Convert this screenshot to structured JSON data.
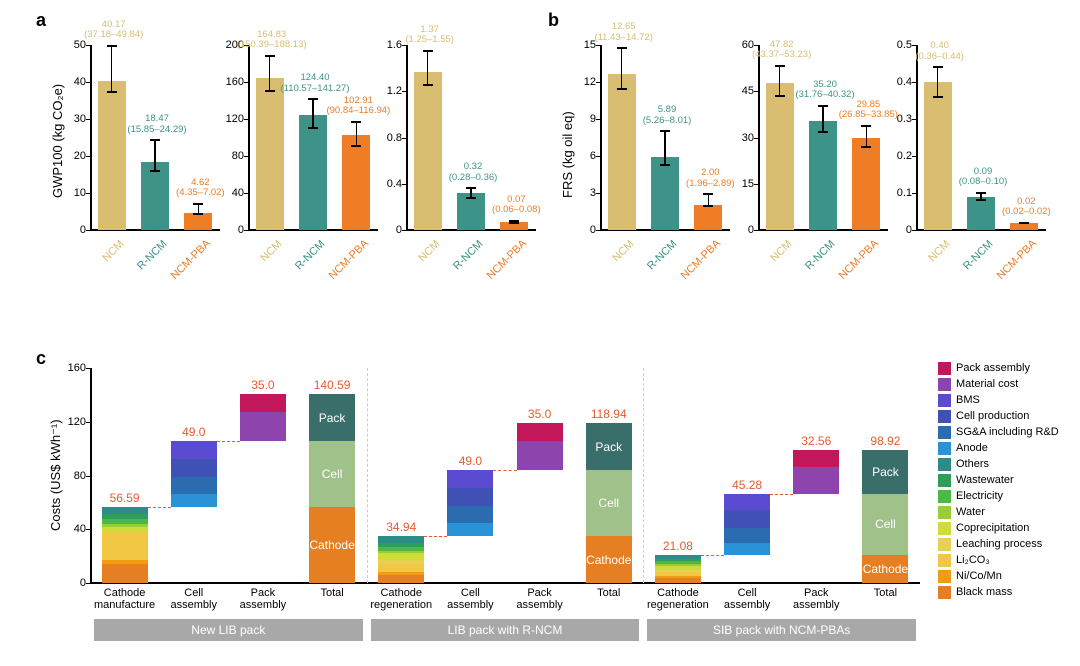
{
  "colors": {
    "ncm": "#d9bd70",
    "rncm": "#3e9388",
    "pba": "#ee7d26",
    "axis": "#000000",
    "bg": "#ffffff"
  },
  "panelA": {
    "label": "a",
    "ylabel": "GWP100 (kg CO₂e)",
    "charts": [
      {
        "ylim": [
          0,
          50
        ],
        "ytick": 10,
        "bars": [
          {
            "cat": "NCM",
            "v": 40.17,
            "lo": 37.18,
            "hi": 49.84,
            "color": "#d9bd70"
          },
          {
            "cat": "R-NCM",
            "v": 18.47,
            "lo": 15.85,
            "hi": 24.29,
            "color": "#3e9388"
          },
          {
            "cat": "NCM-PBA",
            "v": 4.62,
            "lo": 4.35,
            "hi": 7.02,
            "color": "#ee7d26"
          }
        ]
      },
      {
        "ylim": [
          0,
          200
        ],
        "ytick": 40,
        "bars": [
          {
            "cat": "NCM",
            "v": 164.83,
            "lo": 150.39,
            "hi": 188.13,
            "color": "#d9bd70"
          },
          {
            "cat": "R-NCM",
            "v": 124.4,
            "lo": 110.57,
            "hi": 141.27,
            "color": "#3e9388"
          },
          {
            "cat": "NCM-PBA",
            "v": 102.91,
            "lo": 90.84,
            "hi": 116.94,
            "color": "#ee7d26"
          }
        ]
      },
      {
        "ylim": [
          0,
          1.6
        ],
        "ytick": 0.4,
        "bars": [
          {
            "cat": "NCM",
            "v": 1.37,
            "lo": 1.25,
            "hi": 1.55,
            "color": "#d9bd70"
          },
          {
            "cat": "R-NCM",
            "v": 0.32,
            "lo": 0.28,
            "hi": 0.36,
            "color": "#3e9388"
          },
          {
            "cat": "NCM-PBA",
            "v": 0.07,
            "lo": 0.06,
            "hi": 0.08,
            "color": "#ee7d26"
          }
        ]
      }
    ]
  },
  "panelB": {
    "label": "b",
    "ylabel": "FRS (kg oil eq)",
    "charts": [
      {
        "ylim": [
          0,
          15
        ],
        "ytick": 3,
        "bars": [
          {
            "cat": "NCM",
            "v": 12.65,
            "lo": 11.43,
            "hi": 14.72,
            "color": "#d9bd70"
          },
          {
            "cat": "R-NCM",
            "v": 5.89,
            "lo": 5.26,
            "hi": 8.01,
            "color": "#3e9388"
          },
          {
            "cat": "NCM-PBA",
            "v": 2.0,
            "lo": 1.96,
            "hi": 2.89,
            "color": "#ee7d26"
          }
        ]
      },
      {
        "ylim": [
          0,
          60
        ],
        "ytick": 15,
        "bars": [
          {
            "cat": "NCM",
            "v": 47.82,
            "lo": 43.37,
            "hi": 53.23,
            "color": "#d9bd70"
          },
          {
            "cat": "R-NCM",
            "v": 35.2,
            "lo": 31.76,
            "hi": 40.32,
            "color": "#3e9388"
          },
          {
            "cat": "NCM-PBA",
            "v": 29.85,
            "lo": 26.85,
            "hi": 33.85,
            "color": "#ee7d26"
          }
        ]
      },
      {
        "ylim": [
          0,
          0.5
        ],
        "ytick": 0.1,
        "bars": [
          {
            "cat": "NCM",
            "v": 0.4,
            "lo": 0.36,
            "hi": 0.44,
            "color": "#d9bd70"
          },
          {
            "cat": "R-NCM",
            "v": 0.09,
            "lo": 0.08,
            "hi": 0.1,
            "color": "#3e9388"
          },
          {
            "cat": "NCM-PBA",
            "v": 0.02,
            "lo": 0.02,
            "hi": 0.02,
            "color": "#ee7d26"
          }
        ]
      }
    ]
  },
  "panelC": {
    "label": "c",
    "ylabel": "Costs (US$ kWh⁻¹)",
    "ylim": [
      0,
      160
    ],
    "ytick": 40,
    "legend": [
      {
        "name": "Pack assembly",
        "color": "#c2185b"
      },
      {
        "name": "Material cost",
        "color": "#8e44ad"
      },
      {
        "name": "BMS",
        "color": "#5b4bd1"
      },
      {
        "name": "Cell production",
        "color": "#3f51b5"
      },
      {
        "name": "SG&A including R&D",
        "color": "#2b6cb0"
      },
      {
        "name": "Anode",
        "color": "#2a93d5"
      },
      {
        "name": "Others",
        "color": "#2d8b88"
      },
      {
        "name": "Wastewater",
        "color": "#2e9e5b"
      },
      {
        "name": "Electricity",
        "color": "#4cb944"
      },
      {
        "name": "Water",
        "color": "#9acd32"
      },
      {
        "name": "Coprecipitation",
        "color": "#cddc39"
      },
      {
        "name": "Leaching process",
        "color": "#e6d153"
      },
      {
        "name": "Li₂CO₃",
        "color": "#f2c744"
      },
      {
        "name": "Ni/Co/Mn",
        "color": "#f39c12"
      },
      {
        "name": "Black mass",
        "color": "#e67e22"
      }
    ],
    "groups": [
      {
        "name": "New LIB pack",
        "bars": [
          {
            "cat": "Cathode\nmanufacture",
            "top": "56.59",
            "base": 0,
            "segs": [
              {
                "c": "#e67e22",
                "h": 14
              },
              {
                "c": "#f39c12",
                "h": 3
              },
              {
                "c": "#f2c744",
                "h": 21
              },
              {
                "c": "#cddc39",
                "h": 4
              },
              {
                "c": "#9acd32",
                "h": 2
              },
              {
                "c": "#4cb944",
                "h": 4
              },
              {
                "c": "#2e9e5b",
                "h": 3.5
              },
              {
                "c": "#2d8b88",
                "h": 5.09
              }
            ]
          },
          {
            "cat": "Cell\nassembly",
            "top": "49.0",
            "base": 56.59,
            "segs": [
              {
                "c": "#2a93d5",
                "h": 10
              },
              {
                "c": "#2b6cb0",
                "h": 12
              },
              {
                "c": "#3f51b5",
                "h": 14
              },
              {
                "c": "#5b4bd1",
                "h": 13
              }
            ]
          },
          {
            "cat": "Pack\nassembly",
            "top": "35.0",
            "base": 105.59,
            "segs": [
              {
                "c": "#8e44ad",
                "h": 22
              },
              {
                "c": "#c2185b",
                "h": 13
              }
            ]
          },
          {
            "cat": "Total",
            "top": "140.59",
            "base": 0,
            "segs": [
              {
                "c": "#e67e22",
                "h": 56.59,
                "label": "Cathode"
              },
              {
                "c": "#a0c18a",
                "h": 49,
                "label": "Cell"
              },
              {
                "c": "#3a6e6a",
                "h": 35,
                "label": "Pack"
              }
            ]
          }
        ]
      },
      {
        "name": "LIB pack with R-NCM",
        "bars": [
          {
            "cat": "Cathode\nregeneration",
            "top": "34.94",
            "base": 0,
            "segs": [
              {
                "c": "#e67e22",
                "h": 6
              },
              {
                "c": "#f39c12",
                "h": 2
              },
              {
                "c": "#f2c744",
                "h": 6
              },
              {
                "c": "#e6d153",
                "h": 3
              },
              {
                "c": "#cddc39",
                "h": 5
              },
              {
                "c": "#9acd32",
                "h": 2
              },
              {
                "c": "#4cb944",
                "h": 3
              },
              {
                "c": "#2e9e5b",
                "h": 3
              },
              {
                "c": "#2d8b88",
                "h": 4.94
              }
            ]
          },
          {
            "cat": "Cell\nassembly",
            "top": "49.0",
            "base": 34.94,
            "segs": [
              {
                "c": "#2a93d5",
                "h": 10
              },
              {
                "c": "#2b6cb0",
                "h": 12
              },
              {
                "c": "#3f51b5",
                "h": 14
              },
              {
                "c": "#5b4bd1",
                "h": 13
              }
            ]
          },
          {
            "cat": "Pack\nassembly",
            "top": "35.0",
            "base": 83.94,
            "segs": [
              {
                "c": "#8e44ad",
                "h": 22
              },
              {
                "c": "#c2185b",
                "h": 13
              }
            ]
          },
          {
            "cat": "Total",
            "top": "118.94",
            "base": 0,
            "segs": [
              {
                "c": "#e67e22",
                "h": 34.94,
                "label": "Cathode"
              },
              {
                "c": "#a0c18a",
                "h": 49,
                "label": "Cell"
              },
              {
                "c": "#3a6e6a",
                "h": 35,
                "label": "Pack"
              }
            ]
          }
        ]
      },
      {
        "name": "SIB pack with NCM-PBAs",
        "bars": [
          {
            "cat": "Cathode\nregeneration",
            "top": "21.08",
            "base": 0,
            "segs": [
              {
                "c": "#e67e22",
                "h": 4
              },
              {
                "c": "#f39c12",
                "h": 1.5
              },
              {
                "c": "#f2c744",
                "h": 2.5
              },
              {
                "c": "#e6d153",
                "h": 2
              },
              {
                "c": "#cddc39",
                "h": 3
              },
              {
                "c": "#9acd32",
                "h": 1.5
              },
              {
                "c": "#4cb944",
                "h": 2
              },
              {
                "c": "#2e9e5b",
                "h": 1.5
              },
              {
                "c": "#2d8b88",
                "h": 3.08
              }
            ]
          },
          {
            "cat": "Cell\nassembly",
            "top": "45.28",
            "base": 21.08,
            "segs": [
              {
                "c": "#2a93d5",
                "h": 9
              },
              {
                "c": "#2b6cb0",
                "h": 11
              },
              {
                "c": "#3f51b5",
                "h": 13
              },
              {
                "c": "#5b4bd1",
                "h": 12.28
              }
            ]
          },
          {
            "cat": "Pack\nassembly",
            "top": "32.56",
            "base": 66.36,
            "segs": [
              {
                "c": "#8e44ad",
                "h": 20
              },
              {
                "c": "#c2185b",
                "h": 12.56
              }
            ]
          },
          {
            "cat": "Total",
            "top": "98.92",
            "base": 0,
            "segs": [
              {
                "c": "#e67e22",
                "h": 21.08,
                "label": "Cathode"
              },
              {
                "c": "#a0c18a",
                "h": 45.28,
                "label": "Cell"
              },
              {
                "c": "#3a6e6a",
                "h": 32.56,
                "label": "Pack"
              }
            ]
          }
        ]
      }
    ]
  }
}
